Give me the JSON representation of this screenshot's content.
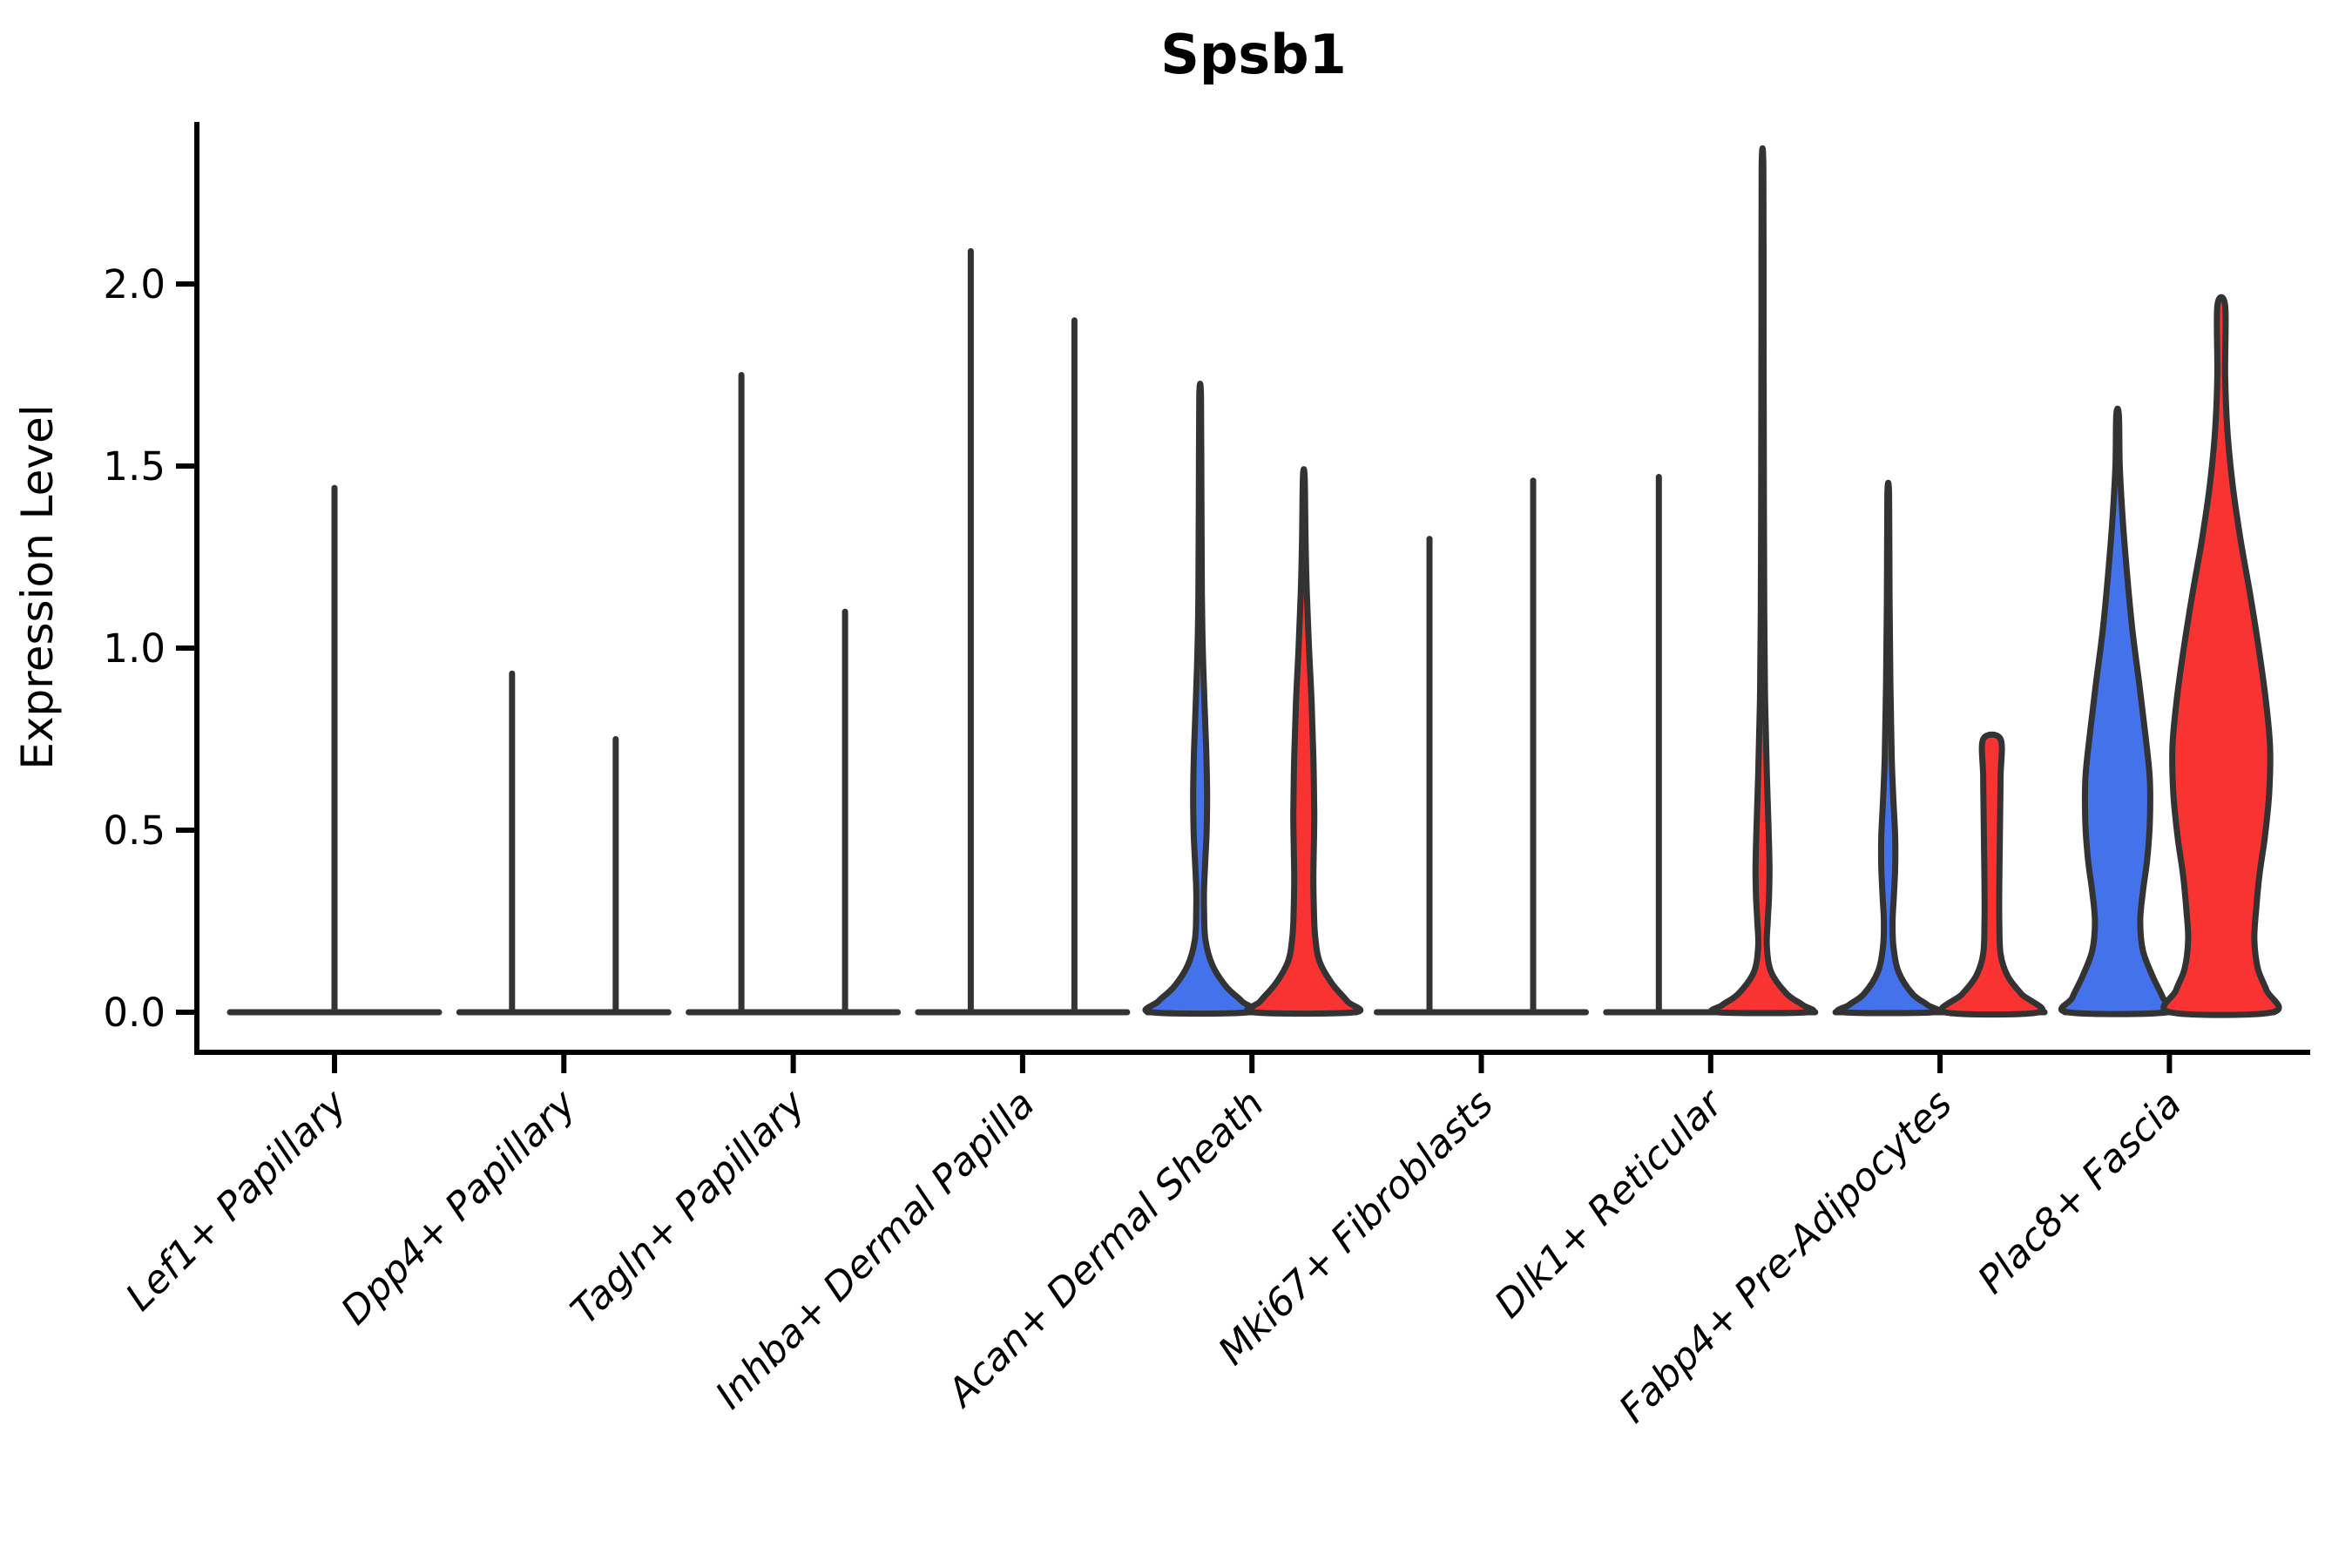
{
  "title": "Spsb1",
  "y_axis": {
    "label": "Expression Level",
    "tick_labels": [
      "0.0",
      "0.5",
      "1.0",
      "1.5",
      "2.0"
    ],
    "tick_values": [
      0.0,
      0.5,
      1.0,
      1.5,
      2.0
    ]
  },
  "x_axis": {
    "categories": [
      "Lef1+ Papillary",
      "Dpp4+ Papillary",
      "Tagln+ Papillary",
      "Inhba+ Dermal Papilla",
      "Acan+ Dermal Sheath",
      "Mki67+ Fibroblasts",
      "Dlk1+ Reticular",
      "Fabp4+ Pre-Adipocytes",
      "Plac8+ Fascia"
    ]
  },
  "colors": {
    "group_blue": "#4472EA",
    "group_red": "#F93232",
    "group_single": "none",
    "outline": "#333333",
    "axis": "#000000",
    "background": "#ffffff"
  },
  "chart_data": {
    "type": "violin",
    "title": "Spsb1",
    "xlabel": "",
    "ylabel": "Expression Level",
    "ylim": [
      -0.11,
      2.45
    ],
    "yticks": [
      0.0,
      0.5,
      1.0,
      1.5,
      2.0
    ],
    "grid": false,
    "legend_position": "none",
    "groups": [
      {
        "key": "blue",
        "side": "left",
        "color_ref": "group_blue"
      },
      {
        "key": "red",
        "side": "right",
        "color_ref": "group_red"
      }
    ],
    "note": "max = top of each violin in expression units; profile = [expression_value, half_width_px] pairs describing density outline; spike = razor-thin violin drawn as vertical line plus flat baseline",
    "categories": [
      "Lef1+ Papillary",
      "Dpp4+ Papillary",
      "Tagln+ Papillary",
      "Inhba+ Dermal Papilla",
      "Acan+ Dermal Sheath",
      "Mki67+ Fibroblasts",
      "Dlk1+ Reticular",
      "Fabp4+ Pre-Adipocytes",
      "Plac8+ Fascia"
    ],
    "violins": [
      {
        "category": "Lef1+ Papillary",
        "cells": [
          {
            "group": "single",
            "style": "spike",
            "max": 1.44
          }
        ]
      },
      {
        "category": "Dpp4+ Papillary",
        "cells": [
          {
            "group": "blue",
            "style": "spike",
            "max": 0.93
          },
          {
            "group": "red",
            "style": "spike",
            "max": 0.75
          }
        ]
      },
      {
        "category": "Tagln+ Papillary",
        "cells": [
          {
            "group": "blue",
            "style": "spike",
            "max": 1.75
          },
          {
            "group": "red",
            "style": "spike",
            "max": 1.1
          }
        ]
      },
      {
        "category": "Inhba+ Dermal Papilla",
        "cells": [
          {
            "group": "blue",
            "style": "spike",
            "max": 2.09
          },
          {
            "group": "red",
            "style": "spike",
            "max": 1.9
          }
        ]
      },
      {
        "category": "Acan+ Dermal Sheath",
        "cells": [
          {
            "group": "blue",
            "style": "body",
            "max": 1.69,
            "profile": [
              [
                1.69,
                1
              ],
              [
                1.4,
                1.5
              ],
              [
                1.15,
                2
              ],
              [
                1.0,
                3
              ],
              [
                0.85,
                5
              ],
              [
                0.72,
                7
              ],
              [
                0.6,
                8
              ],
              [
                0.5,
                7.5
              ],
              [
                0.42,
                6
              ],
              [
                0.34,
                4.5
              ],
              [
                0.28,
                4.5
              ],
              [
                0.2,
                6
              ],
              [
                0.13,
                14
              ],
              [
                0.07,
                30
              ],
              [
                0.03,
                48
              ],
              [
                0.0,
                56
              ]
            ]
          },
          {
            "group": "red",
            "style": "body",
            "max": 1.47,
            "profile": [
              [
                1.47,
                1
              ],
              [
                1.3,
                2
              ],
              [
                1.15,
                3.5
              ],
              [
                1.0,
                6
              ],
              [
                0.85,
                9
              ],
              [
                0.7,
                11
              ],
              [
                0.55,
                12
              ],
              [
                0.45,
                11.5
              ],
              [
                0.37,
                11
              ],
              [
                0.29,
                11.5
              ],
              [
                0.21,
                13
              ],
              [
                0.14,
                18
              ],
              [
                0.08,
                32
              ],
              [
                0.03,
                50
              ],
              [
                0.0,
                58
              ]
            ]
          }
        ]
      },
      {
        "category": "Mki67+ Fibroblasts",
        "cells": [
          {
            "group": "blue",
            "style": "spike",
            "max": 1.3
          },
          {
            "group": "red",
            "style": "spike",
            "max": 1.46
          }
        ]
      },
      {
        "category": "Dlk1+ Reticular",
        "cells": [
          {
            "group": "blue",
            "style": "spike",
            "max": 1.47
          },
          {
            "group": "red",
            "style": "body",
            "max": 2.32,
            "profile": [
              [
                2.32,
                1
              ],
              [
                1.9,
                1.2
              ],
              [
                1.5,
                1.5
              ],
              [
                1.1,
                2
              ],
              [
                0.85,
                3
              ],
              [
                0.65,
                5
              ],
              [
                0.5,
                7
              ],
              [
                0.4,
                8
              ],
              [
                0.32,
                7.5
              ],
              [
                0.25,
                6
              ],
              [
                0.18,
                5
              ],
              [
                0.11,
                10
              ],
              [
                0.05,
                28
              ],
              [
                0.02,
                46
              ],
              [
                0.0,
                52
              ]
            ]
          }
        ]
      },
      {
        "category": "Fabp4+ Pre-Adipocytes",
        "cells": [
          {
            "group": "blue",
            "style": "body",
            "max": 1.42,
            "profile": [
              [
                1.42,
                1
              ],
              [
                1.15,
                1.5
              ],
              [
                0.9,
                2.5
              ],
              [
                0.7,
                4
              ],
              [
                0.58,
                6
              ],
              [
                0.48,
                8
              ],
              [
                0.4,
                8
              ],
              [
                0.32,
                6.5
              ],
              [
                0.25,
                5
              ],
              [
                0.18,
                6
              ],
              [
                0.11,
                12
              ],
              [
                0.05,
                28
              ],
              [
                0.02,
                45
              ],
              [
                0.0,
                52
              ]
            ]
          },
          {
            "group": "red",
            "style": "body",
            "max": 0.75,
            "profile": [
              [
                0.75,
                10
              ],
              [
                0.65,
                10
              ],
              [
                0.55,
                9.5
              ],
              [
                0.45,
                9
              ],
              [
                0.35,
                8.5
              ],
              [
                0.25,
                8.5
              ],
              [
                0.16,
                10
              ],
              [
                0.1,
                18
              ],
              [
                0.05,
                34
              ],
              [
                0.0,
                54
              ]
            ]
          }
        ]
      },
      {
        "category": "Plac8+ Fascia",
        "cells": [
          {
            "group": "blue",
            "style": "body",
            "max": 1.64,
            "profile": [
              [
                1.64,
                1.5
              ],
              [
                1.5,
                2.5
              ],
              [
                1.35,
                6
              ],
              [
                1.2,
                11
              ],
              [
                1.05,
                17
              ],
              [
                0.9,
                25
              ],
              [
                0.76,
                32
              ],
              [
                0.64,
                37
              ],
              [
                0.52,
                37
              ],
              [
                0.42,
                34
              ],
              [
                0.33,
                29
              ],
              [
                0.25,
                26
              ],
              [
                0.17,
                29
              ],
              [
                0.1,
                40
              ],
              [
                0.04,
                52
              ],
              [
                0.0,
                57
              ]
            ]
          },
          {
            "group": "red",
            "style": "body",
            "max": 1.94,
            "profile": [
              [
                1.94,
                4.5
              ],
              [
                1.75,
                4.5
              ],
              [
                1.6,
                7
              ],
              [
                1.45,
                13
              ],
              [
                1.3,
                22
              ],
              [
                1.15,
                33
              ],
              [
                1.0,
                43
              ],
              [
                0.86,
                51
              ],
              [
                0.73,
                56
              ],
              [
                0.6,
                55
              ],
              [
                0.48,
                50
              ],
              [
                0.38,
                44
              ],
              [
                0.28,
                40
              ],
              [
                0.2,
                38
              ],
              [
                0.12,
                42
              ],
              [
                0.06,
                52
              ],
              [
                0.0,
                59
              ]
            ]
          }
        ]
      }
    ]
  }
}
